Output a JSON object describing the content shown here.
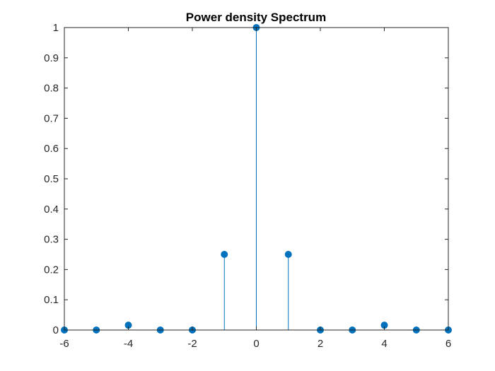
{
  "chart_data": {
    "type": "stem",
    "title": "Power density Spectrum",
    "xlabel": "",
    "ylabel": "",
    "xlim": [
      -6,
      6
    ],
    "ylim": [
      0,
      1
    ],
    "xticks": [
      -6,
      -4,
      -2,
      0,
      2,
      4,
      6
    ],
    "yticks": [
      0,
      0.1,
      0.2,
      0.3,
      0.4,
      0.5,
      0.6,
      0.7,
      0.8,
      0.9,
      1
    ],
    "grid": false,
    "series": [
      {
        "name": "Power density",
        "color": "#0072BD",
        "x": [
          -6,
          -5,
          -4,
          -3,
          -2,
          -1,
          0,
          1,
          2,
          3,
          4,
          5,
          6
        ],
        "y": [
          0,
          0,
          0.016,
          0,
          0,
          0.25,
          1,
          0.25,
          0,
          0,
          0.016,
          0,
          0
        ]
      }
    ]
  }
}
